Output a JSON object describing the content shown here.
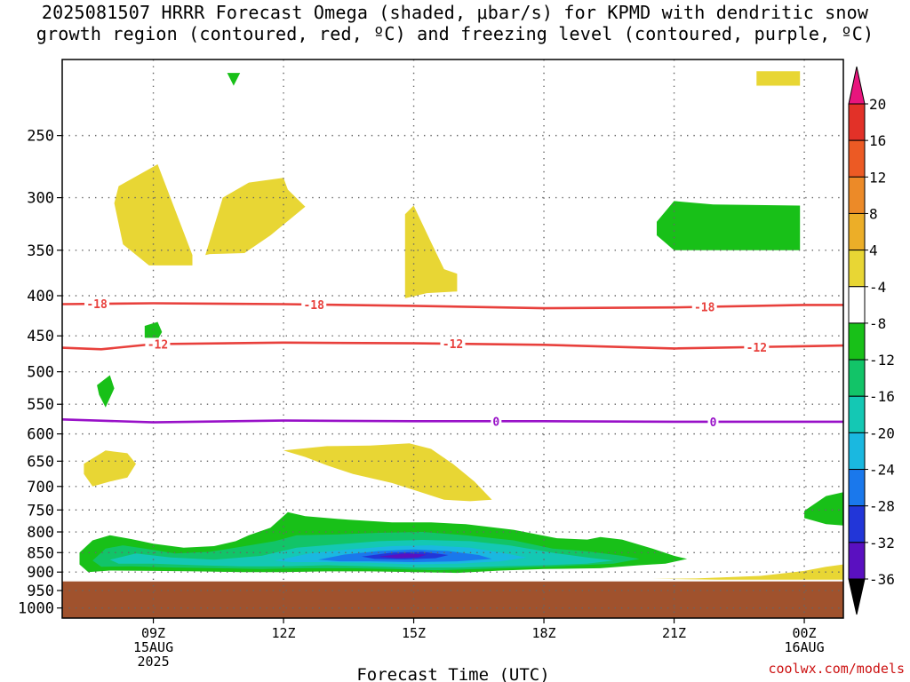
{
  "title_line1": "2025081507 HRRR Forecast Omega (shaded, μbar/s) for KPMD with dendritic snow",
  "title_line2": "growth region (contoured, red, ºC) and freezing level (contoured, purple, ºC)",
  "credit": "coolwx.com/models",
  "chart_data": {
    "type": "contour",
    "xlabel": "Forecast Time (UTC)",
    "x_range_hours": [
      6.9,
      24.9
    ],
    "x_ticks": [
      {
        "hour": 9,
        "lines": [
          "09Z",
          "15AUG",
          "2025"
        ]
      },
      {
        "hour": 12,
        "lines": [
          "12Z"
        ]
      },
      {
        "hour": 15,
        "lines": [
          "15Z"
        ]
      },
      {
        "hour": 18,
        "lines": [
          "18Z"
        ]
      },
      {
        "hour": 21,
        "lines": [
          "21Z"
        ]
      },
      {
        "hour": 24,
        "lines": [
          "00Z",
          "16AUG"
        ]
      }
    ],
    "y_ticks": [
      250,
      300,
      350,
      400,
      450,
      500,
      550,
      600,
      650,
      700,
      750,
      800,
      850,
      900,
      950,
      1000
    ],
    "y_range_hPa": [
      200,
      1030
    ],
    "y_log": true,
    "ground_below_hPa": 925,
    "colorbar": {
      "labels": [
        "20",
        "16",
        "12",
        "8",
        "4",
        "-4",
        "-8",
        "-12",
        "-16",
        "-20",
        "-24",
        "-28",
        "-32",
        "-36"
      ],
      "colors": [
        "#e8157d",
        "#e23128",
        "#ec5a24",
        "#ec8a28",
        "#ecae28",
        "#e8d634",
        "#ffffff",
        "#18c018",
        "#12c468",
        "#14c8b4",
        "#1ab8e0",
        "#1a78ec",
        "#2236d8",
        "#5a10c0",
        "#9a0ac0",
        "#a0a0a0",
        "#000000"
      ]
    },
    "contours": [
      {
        "name": "dgz_-18C",
        "color": "#e8403c",
        "labels": [
          "-18",
          "-18",
          "-18"
        ],
        "points": [
          [
            6.9,
            410
          ],
          [
            9,
            409
          ],
          [
            12,
            410
          ],
          [
            15,
            412
          ],
          [
            18,
            415
          ],
          [
            21,
            414
          ],
          [
            24,
            411
          ],
          [
            24.9,
            411
          ]
        ],
        "label_hours": [
          7.7,
          12.7,
          21.7
        ]
      },
      {
        "name": "dgz_-12C",
        "color": "#e8403c",
        "labels": [
          "-12",
          "-12",
          "-12"
        ],
        "points": [
          [
            6.9,
            466
          ],
          [
            7.8,
            468
          ],
          [
            9,
            461
          ],
          [
            12,
            459
          ],
          [
            15,
            460
          ],
          [
            18,
            462
          ],
          [
            21,
            467
          ],
          [
            24.9,
            463
          ]
        ],
        "label_hours": [
          9.1,
          15.9,
          22.9
        ]
      },
      {
        "name": "freezing_0C",
        "color": "#9810c8",
        "labels": [
          "0",
          "0"
        ],
        "points": [
          [
            6.9,
            575
          ],
          [
            9,
            580
          ],
          [
            12,
            577
          ],
          [
            15,
            578
          ],
          [
            18,
            578
          ],
          [
            21,
            579
          ],
          [
            24,
            579
          ],
          [
            24.9,
            579
          ]
        ],
        "label_hours": [
          16.9,
          21.9
        ]
      }
    ],
    "shaded_regions": [
      {
        "value": 4,
        "color": "#e8d634",
        "points": [
          [
            8.2,
            290
          ],
          [
            9.1,
            272
          ],
          [
            9.9,
            355
          ],
          [
            9.9,
            366
          ],
          [
            8.9,
            366
          ],
          [
            8.3,
            344
          ],
          [
            8.1,
            305
          ]
        ]
      },
      {
        "value": 4,
        "color": "#e8d634",
        "points": [
          [
            10.2,
            355
          ],
          [
            10.6,
            300
          ],
          [
            11.2,
            287
          ],
          [
            12,
            283
          ],
          [
            12.1,
            293
          ],
          [
            12.5,
            308
          ],
          [
            11.7,
            335
          ],
          [
            11.1,
            353
          ],
          [
            10.3,
            354
          ]
        ]
      },
      {
        "value": 4,
        "color": "#e8d634",
        "points": [
          [
            14.8,
            315
          ],
          [
            15,
            307
          ],
          [
            15.4,
            342
          ],
          [
            15.7,
            370
          ],
          [
            16.0,
            375
          ],
          [
            16.0,
            395
          ],
          [
            15.3,
            397
          ],
          [
            14.8,
            403
          ]
        ]
      },
      {
        "value": 4,
        "color": "#e8d634",
        "points": [
          [
            7.4,
            655
          ],
          [
            7.9,
            630
          ],
          [
            8.4,
            635
          ],
          [
            8.6,
            655
          ],
          [
            8.4,
            682
          ],
          [
            8.0,
            690
          ],
          [
            7.6,
            700
          ],
          [
            7.4,
            675
          ]
        ]
      },
      {
        "value": 4,
        "color": "#e8d634",
        "points": [
          [
            12.0,
            630
          ],
          [
            13.0,
            622
          ],
          [
            14.0,
            621
          ],
          [
            14.9,
            617
          ],
          [
            15.4,
            627
          ],
          [
            15.9,
            655
          ],
          [
            16.4,
            690
          ],
          [
            16.8,
            728
          ],
          [
            16.3,
            731
          ],
          [
            15.7,
            728
          ],
          [
            15.1,
            710
          ],
          [
            14.5,
            693
          ],
          [
            13.6,
            675
          ],
          [
            13.0,
            658
          ],
          [
            12.5,
            642
          ]
        ]
      },
      {
        "value": 4,
        "color": "#e8d634",
        "points": [
          [
            24,
            897
          ],
          [
            24.5,
            886
          ],
          [
            24.9,
            880
          ],
          [
            24.9,
            920
          ],
          [
            23.5,
            920
          ],
          [
            22.0,
            920
          ],
          [
            20.5,
            918
          ],
          [
            21.5,
            917
          ],
          [
            23.0,
            910
          ]
        ]
      },
      {
        "value": 4,
        "color": "#e8d634",
        "points": [
          [
            22.9,
            207
          ],
          [
            23.9,
            207
          ],
          [
            23.9,
            216
          ],
          [
            22.9,
            216
          ]
        ]
      },
      {
        "value": -4,
        "color": "#18c018",
        "points": [
          [
            21.0,
            303
          ],
          [
            21.9,
            306
          ],
          [
            23.9,
            307
          ],
          [
            23.9,
            350
          ],
          [
            21.0,
            350
          ],
          [
            20.6,
            335
          ],
          [
            20.6,
            322
          ]
        ]
      },
      {
        "value": -4,
        "color": "#18c018",
        "points": [
          [
            8.8,
            437
          ],
          [
            9.1,
            432
          ],
          [
            9.2,
            445
          ],
          [
            9.0,
            465
          ],
          [
            8.8,
            452
          ]
        ]
      },
      {
        "value": -4,
        "color": "#18c018",
        "points": [
          [
            7.7,
            520
          ],
          [
            8.0,
            505
          ],
          [
            8.1,
            525
          ],
          [
            7.9,
            555
          ],
          [
            7.75,
            535
          ]
        ]
      },
      {
        "value": -4,
        "color": "#18c018",
        "points": [
          [
            10.7,
            208
          ],
          [
            11.0,
            208
          ],
          [
            10.85,
            216
          ]
        ]
      },
      {
        "value": -4,
        "color": "#18c018",
        "points": [
          [
            24.0,
            752
          ],
          [
            24.5,
            720
          ],
          [
            24.9,
            712
          ],
          [
            24.9,
            785
          ],
          [
            24.5,
            782
          ],
          [
            24.0,
            768
          ]
        ]
      },
      {
        "value": -4,
        "color": "#18c018",
        "points": [
          [
            7.3,
            850
          ],
          [
            7.6,
            820
          ],
          [
            8.0,
            808
          ],
          [
            8.5,
            817
          ],
          [
            9.0,
            828
          ],
          [
            9.7,
            838
          ],
          [
            10.4,
            834
          ],
          [
            10.9,
            822
          ],
          [
            11.2,
            808
          ],
          [
            11.7,
            790
          ],
          [
            12.1,
            755
          ],
          [
            12.5,
            764
          ],
          [
            13.5,
            772
          ],
          [
            14.5,
            778
          ],
          [
            15.4,
            778
          ],
          [
            16.2,
            782
          ],
          [
            17.3,
            795
          ],
          [
            18.3,
            815
          ],
          [
            19,
            818
          ],
          [
            19.3,
            812
          ],
          [
            19.8,
            818
          ],
          [
            20.5,
            840
          ],
          [
            21.0,
            858
          ],
          [
            21.3,
            866
          ],
          [
            20.8,
            878
          ],
          [
            20.2,
            882
          ],
          [
            19.3,
            890
          ],
          [
            18.0,
            892
          ],
          [
            17.0,
            896
          ],
          [
            16.0,
            902
          ],
          [
            15.0,
            900
          ],
          [
            14.0,
            898
          ],
          [
            13.0,
            898
          ],
          [
            12.0,
            900
          ],
          [
            11.0,
            900
          ],
          [
            10.0,
            898
          ],
          [
            9.0,
            897
          ],
          [
            8.0,
            896
          ],
          [
            7.5,
            900
          ],
          [
            7.3,
            880
          ]
        ]
      },
      {
        "value": -8,
        "color": "#12c468",
        "points": [
          [
            7.6,
            870
          ],
          [
            7.9,
            840
          ],
          [
            8.3,
            832
          ],
          [
            8.8,
            840
          ],
          [
            9.5,
            852
          ],
          [
            10.3,
            848
          ],
          [
            11.0,
            836
          ],
          [
            11.8,
            822
          ],
          [
            12.3,
            808
          ],
          [
            13.2,
            806
          ],
          [
            14.2,
            802
          ],
          [
            15.2,
            800
          ],
          [
            16.2,
            808
          ],
          [
            17.3,
            820
          ],
          [
            18.2,
            840
          ],
          [
            19.0,
            847
          ],
          [
            19.8,
            858
          ],
          [
            20.2,
            866
          ],
          [
            19.6,
            878
          ],
          [
            18.5,
            884
          ],
          [
            17.5,
            888
          ],
          [
            16.5,
            892
          ],
          [
            15.5,
            895
          ],
          [
            14.5,
            892
          ],
          [
            13.5,
            890
          ],
          [
            12.5,
            890
          ],
          [
            11.5,
            892
          ],
          [
            10.5,
            890
          ],
          [
            9.5,
            888
          ],
          [
            8.5,
            885
          ],
          [
            7.8,
            886
          ]
        ]
      },
      {
        "value": -12,
        "color": "#14c8b4",
        "points": [
          [
            8.0,
            868
          ],
          [
            8.6,
            852
          ],
          [
            9.4,
            862
          ],
          [
            10.4,
            868
          ],
          [
            11.5,
            858
          ],
          [
            12.3,
            838
          ],
          [
            13.2,
            830
          ],
          [
            14.2,
            822
          ],
          [
            15.2,
            819
          ],
          [
            16.3,
            822
          ],
          [
            17.2,
            832
          ],
          [
            18.3,
            852
          ],
          [
            19.0,
            862
          ],
          [
            19.6,
            870
          ],
          [
            19.0,
            878
          ],
          [
            18.0,
            882
          ],
          [
            17.0,
            885
          ],
          [
            16.0,
            888
          ],
          [
            15.0,
            888
          ],
          [
            14.0,
            885
          ],
          [
            13.0,
            882
          ],
          [
            12.0,
            885
          ],
          [
            11.0,
            885
          ],
          [
            10.0,
            882
          ],
          [
            9.0,
            878
          ],
          [
            8.2,
            878
          ]
        ]
      },
      {
        "value": -16,
        "color": "#1ab8e0",
        "points": [
          [
            11.8,
            870
          ],
          [
            12.6,
            852
          ],
          [
            13.5,
            842
          ],
          [
            14.5,
            834
          ],
          [
            15.4,
            832
          ],
          [
            16.3,
            838
          ],
          [
            17.0,
            850
          ],
          [
            17.6,
            862
          ],
          [
            17.0,
            872
          ],
          [
            16.0,
            878
          ],
          [
            15.0,
            880
          ],
          [
            14.0,
            876
          ],
          [
            13.0,
            874
          ],
          [
            12.2,
            874
          ]
        ]
      },
      {
        "value": -20,
        "color": "#1a78ec",
        "points": [
          [
            12.8,
            868
          ],
          [
            13.4,
            855
          ],
          [
            14.2,
            846
          ],
          [
            15.0,
            842
          ],
          [
            15.8,
            846
          ],
          [
            16.5,
            856
          ],
          [
            16.8,
            866
          ],
          [
            16.0,
            872
          ],
          [
            15.0,
            874
          ],
          [
            14.0,
            872
          ],
          [
            13.3,
            872
          ]
        ]
      },
      {
        "value": -24,
        "color": "#2236d8",
        "points": [
          [
            13.8,
            860
          ],
          [
            14.5,
            850
          ],
          [
            15.2,
            848
          ],
          [
            15.8,
            856
          ],
          [
            15.5,
            864
          ],
          [
            14.8,
            867
          ],
          [
            14.1,
            866
          ]
        ]
      },
      {
        "value": -28,
        "color": "#5a10c0",
        "points": [
          [
            14.2,
            860
          ],
          [
            14.8,
            852
          ],
          [
            15.3,
            855
          ],
          [
            15.1,
            862
          ],
          [
            14.6,
            864
          ]
        ]
      }
    ]
  }
}
